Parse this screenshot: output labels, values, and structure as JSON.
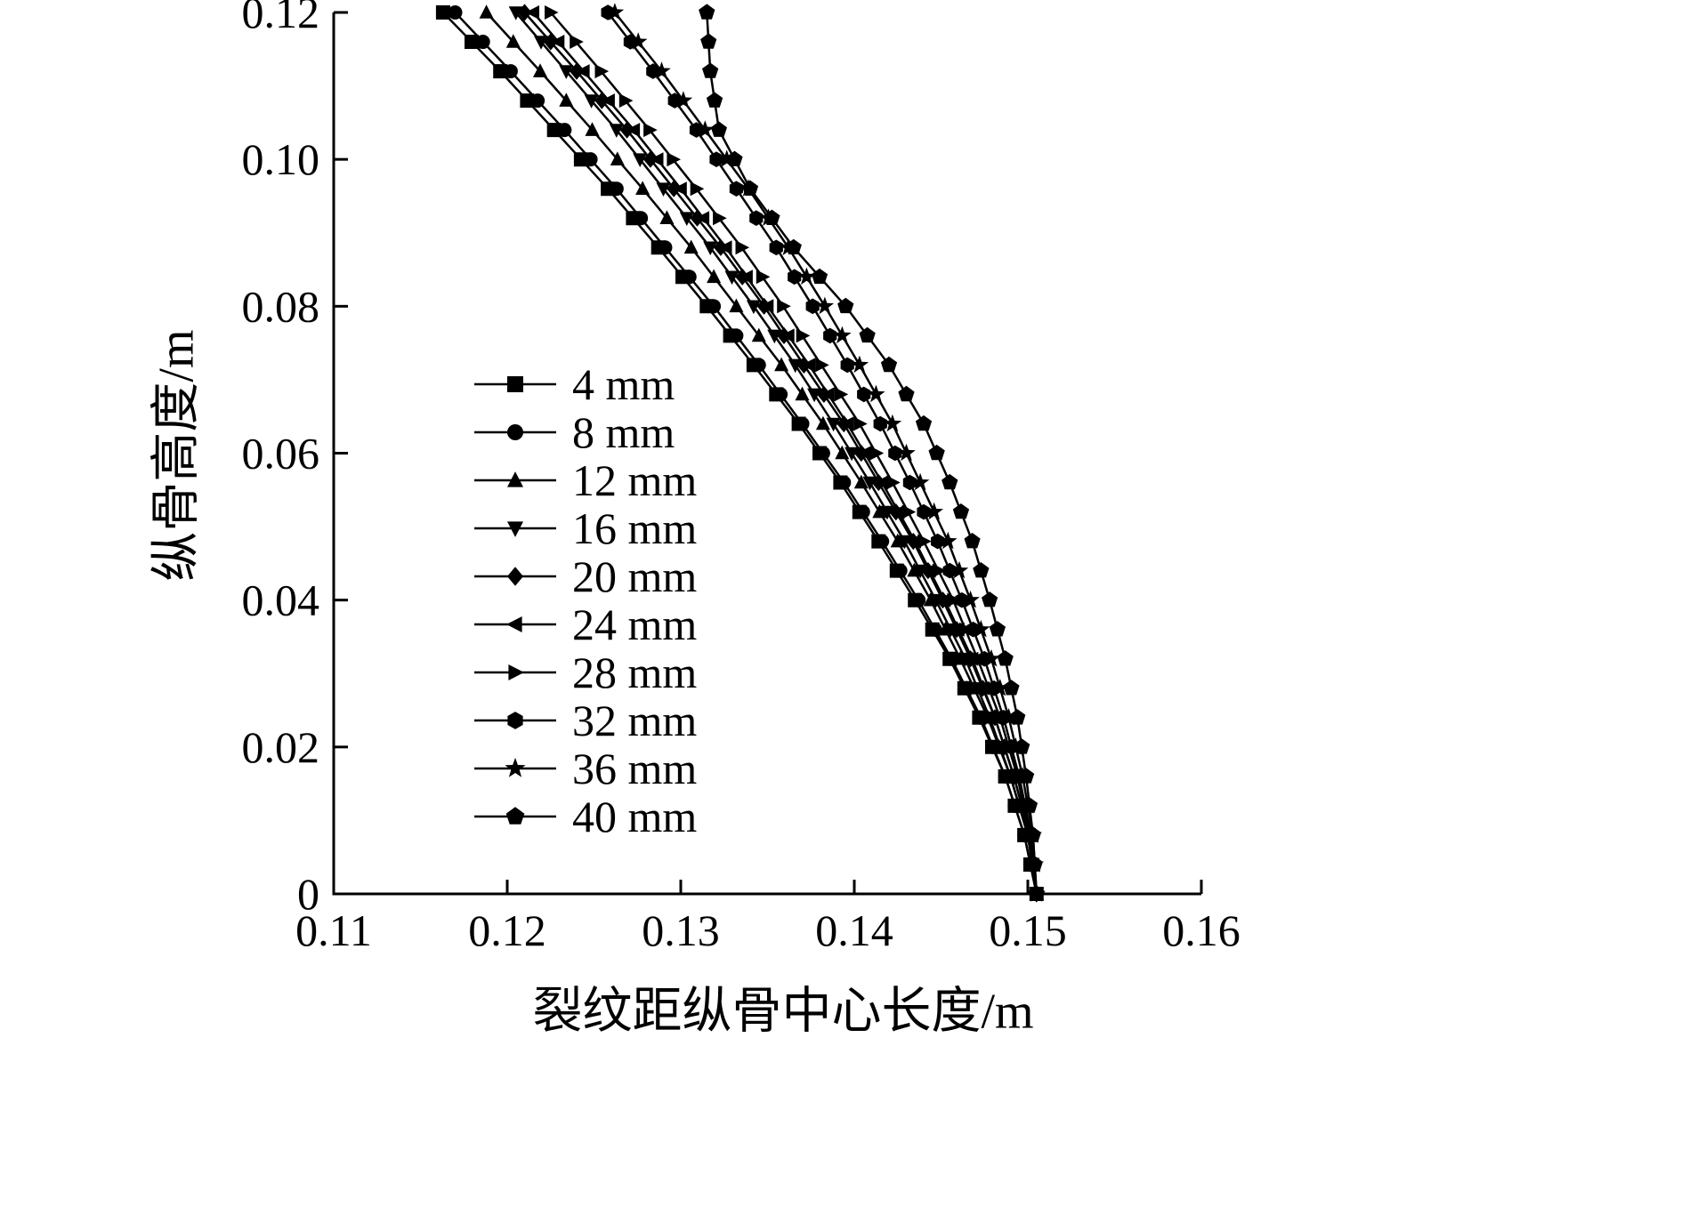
{
  "chart_data": {
    "type": "line",
    "title": "",
    "xlabel": "裂纹距纵骨中心长度/m",
    "ylabel": "纵骨高度/m",
    "xlim": [
      0.11,
      0.16
    ],
    "ylim": [
      0,
      0.12
    ],
    "xticks": [
      0.11,
      0.12,
      0.13,
      0.14,
      0.15,
      0.16
    ],
    "xtick_labels": [
      "0.11",
      "0.12",
      "0.13",
      "0.14",
      "0.15",
      "0.16"
    ],
    "yticks": [
      0,
      0.02,
      0.04,
      0.06,
      0.08,
      0.1,
      0.12
    ],
    "ytick_labels": [
      "0",
      "0.02",
      "0.04",
      "0.06",
      "0.08",
      "0.10",
      "0.12"
    ],
    "grid": false,
    "legend_position": "inside-left-middle",
    "line_color": "#000000",
    "y": [
      0.12,
      0.112,
      0.104,
      0.096,
      0.088,
      0.08,
      0.072,
      0.064,
      0.056,
      0.048,
      0.04,
      0.032,
      0.024,
      0.016,
      0.008,
      0.0
    ],
    "series": [
      {
        "name": "4 mm",
        "marker": "square",
        "x": [
          0.1163,
          0.1196,
          0.1227,
          0.1258,
          0.1287,
          0.1315,
          0.1342,
          0.1368,
          0.1392,
          0.1414,
          0.1435,
          0.1455,
          0.1472,
          0.1487,
          0.1498,
          0.1505
        ]
      },
      {
        "name": "8 mm",
        "marker": "circle",
        "x": [
          0.117,
          0.1202,
          0.1233,
          0.1263,
          0.1291,
          0.1319,
          0.1345,
          0.137,
          0.1394,
          0.1416,
          0.1437,
          0.1456,
          0.1473,
          0.1487,
          0.1498,
          0.1505
        ]
      },
      {
        "name": "12 mm",
        "marker": "triangle-up",
        "x": [
          0.1188,
          0.1219,
          0.1249,
          0.1278,
          0.1306,
          0.1332,
          0.1358,
          0.1382,
          0.1404,
          0.1425,
          0.1444,
          0.1461,
          0.1477,
          0.149,
          0.15,
          0.1505
        ]
      },
      {
        "name": "16 mm",
        "marker": "triangle-down",
        "x": [
          0.1205,
          0.1234,
          0.1263,
          0.129,
          0.1317,
          0.1342,
          0.1366,
          0.1388,
          0.1409,
          0.1429,
          0.1447,
          0.1464,
          0.1478,
          0.149,
          0.15,
          0.1505
        ]
      },
      {
        "name": "20 mm",
        "marker": "diamond",
        "x": [
          0.121,
          0.124,
          0.1269,
          0.1296,
          0.1323,
          0.1348,
          0.1371,
          0.1394,
          0.1414,
          0.1434,
          0.1451,
          0.1467,
          0.1481,
          0.1492,
          0.1501,
          0.1505
        ]
      },
      {
        "name": "24 mm",
        "marker": "triangle-left",
        "x": [
          0.1215,
          0.1244,
          0.1273,
          0.13,
          0.1326,
          0.135,
          0.1374,
          0.1396,
          0.1416,
          0.1435,
          0.1452,
          0.1468,
          0.1481,
          0.1492,
          0.1501,
          0.1505
        ]
      },
      {
        "name": "28 mm",
        "marker": "triangle-right",
        "x": [
          0.1225,
          0.1254,
          0.1282,
          0.1309,
          0.1335,
          0.1359,
          0.1381,
          0.1403,
          0.1422,
          0.144,
          0.1457,
          0.1471,
          0.1484,
          0.1494,
          0.1501,
          0.1505
        ]
      },
      {
        "name": "32 mm",
        "marker": "hexagon",
        "x": [
          0.1258,
          0.1284,
          0.1309,
          0.1332,
          0.1355,
          0.1376,
          0.1396,
          0.1415,
          0.1432,
          0.1448,
          0.1462,
          0.1475,
          0.1486,
          0.1495,
          0.1502,
          0.1505
        ]
      },
      {
        "name": "36 mm",
        "marker": "star",
        "x": [
          0.1262,
          0.1289,
          0.1314,
          0.1339,
          0.1362,
          0.1383,
          0.1403,
          0.1422,
          0.1438,
          0.1454,
          0.1467,
          0.1479,
          0.1489,
          0.1497,
          0.1503,
          0.1505
        ]
      },
      {
        "name": "40 mm",
        "marker": "pentagon",
        "x": [
          0.1315,
          0.1317,
          0.1322,
          0.134,
          0.1365,
          0.1395,
          0.142,
          0.144,
          0.1455,
          0.1468,
          0.1478,
          0.1487,
          0.1494,
          0.1499,
          0.1503,
          0.1505
        ]
      }
    ]
  }
}
